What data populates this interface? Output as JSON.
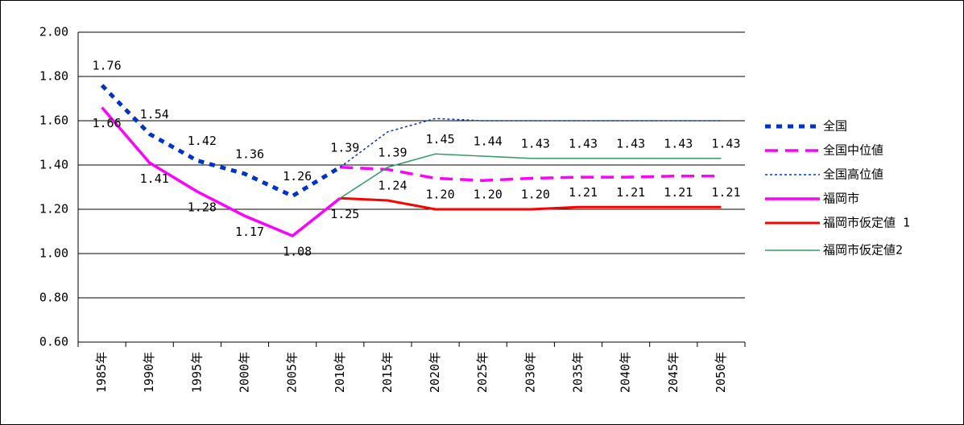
{
  "chart_data": {
    "type": "line",
    "categories": [
      "1985年",
      "1990年",
      "1995年",
      "2000年",
      "2005年",
      "2010年",
      "2015年",
      "2020年",
      "2025年",
      "2030年",
      "2035年",
      "2040年",
      "2045年",
      "2050年"
    ],
    "ylim": [
      0.6,
      2.0
    ],
    "yticks": [
      {
        "value": 0.6,
        "label": "0.60"
      },
      {
        "value": 0.8,
        "label": "0.80"
      },
      {
        "value": 1.0,
        "label": "1.00"
      },
      {
        "value": 1.2,
        "label": "1.20"
      },
      {
        "value": 1.4,
        "label": "1.40"
      },
      {
        "value": 1.6,
        "label": "1.60"
      },
      {
        "value": 1.8,
        "label": "1.80"
      },
      {
        "value": 2.0,
        "label": "2.00"
      }
    ],
    "grid": true,
    "legend": "right",
    "series": [
      {
        "name": "全国",
        "color": "#0033cc",
        "line_style": "dotted-thick",
        "values": [
          1.76,
          1.54,
          1.42,
          1.36,
          1.26,
          1.39,
          null,
          null,
          null,
          null,
          null,
          null,
          null,
          null
        ],
        "value_labels": [
          "1.76",
          "1.54",
          "1.42",
          "1.36",
          "1.26",
          "1.39",
          null,
          null,
          null,
          null,
          null,
          null,
          null,
          null
        ]
      },
      {
        "name": "全国中位値",
        "color": "#ff00ff",
        "line_style": "dashed",
        "values": [
          null,
          null,
          null,
          null,
          null,
          1.39,
          1.38,
          1.34,
          1.33,
          1.34,
          1.345,
          1.345,
          1.35,
          1.35
        ]
      },
      {
        "name": "全国高位値",
        "color": "#0033cc",
        "line_style": "dotted",
        "values": [
          null,
          null,
          null,
          null,
          null,
          1.39,
          1.55,
          1.61,
          1.6,
          1.6,
          1.6,
          1.6,
          1.6,
          1.6
        ]
      },
      {
        "name": "福岡市",
        "color": "#ff00ff",
        "line_style": "solid-thick",
        "values": [
          1.66,
          1.41,
          1.28,
          1.17,
          1.08,
          1.25,
          null,
          null,
          null,
          null,
          null,
          null,
          null,
          null
        ],
        "value_labels": [
          "1.66",
          "1.41",
          "1.28",
          "1.17",
          "1.08",
          "1.25",
          null,
          null,
          null,
          null,
          null,
          null,
          null,
          null
        ]
      },
      {
        "name": "福岡市仮定値 1",
        "color": "#ff0000",
        "line_style": "solid",
        "values": [
          null,
          null,
          null,
          null,
          null,
          1.25,
          1.24,
          1.2,
          1.2,
          1.2,
          1.21,
          1.21,
          1.21,
          1.21
        ],
        "value_labels": [
          null,
          null,
          null,
          null,
          null,
          null,
          "1.24",
          "1.20",
          "1.20",
          "1.20",
          "1.21",
          "1.21",
          "1.21",
          "1.21"
        ]
      },
      {
        "name": "福岡市仮定値2",
        "color": "#339966",
        "line_style": "solid-thin",
        "values": [
          null,
          null,
          null,
          null,
          null,
          1.25,
          1.39,
          1.45,
          1.44,
          1.43,
          1.43,
          1.43,
          1.43,
          1.43
        ],
        "value_labels": [
          null,
          null,
          null,
          null,
          null,
          null,
          "1.39",
          "1.45",
          "1.44",
          "1.43",
          "1.43",
          "1.43",
          "1.43",
          "1.43"
        ]
      }
    ]
  }
}
